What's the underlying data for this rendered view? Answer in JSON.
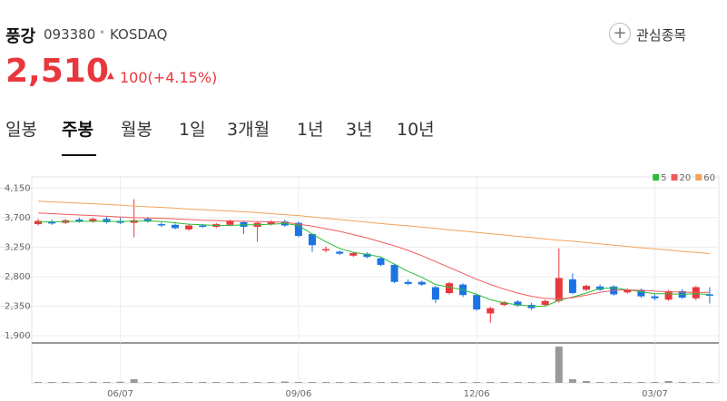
{
  "header": {
    "name": "풍강",
    "code": "093380",
    "separator": "•",
    "market": "KOSDAQ",
    "watch": "관심종목",
    "price": "2,510",
    "arrow": "▲",
    "change": "100(+4.15%)"
  },
  "tabs": [
    "일봉",
    "주봉",
    "월봉",
    "1일",
    "3개월",
    "1년",
    "3년",
    "10년"
  ],
  "selected_tab": 1,
  "chart_data": {
    "type": "candlestick",
    "categories": [
      null,
      null,
      null,
      null,
      null,
      null,
      "06/07",
      null,
      null,
      null,
      null,
      null,
      null,
      null,
      null,
      null,
      null,
      null,
      null,
      "09/06",
      null,
      null,
      null,
      null,
      null,
      null,
      null,
      null,
      null,
      null,
      null,
      null,
      "12/06",
      null,
      null,
      null,
      null,
      null,
      null,
      null,
      null,
      null,
      null,
      null,
      null,
      "03/07",
      null,
      null,
      null,
      null
    ],
    "open": [
      3600,
      3640,
      3620,
      3670,
      3640,
      3680,
      3650,
      3620,
      3680,
      3600,
      3590,
      3520,
      3580,
      3560,
      3590,
      3630,
      3560,
      3600,
      3640,
      3620,
      3450,
      3200,
      3180,
      3120,
      3150,
      3080,
      2980,
      2720,
      2720,
      2640,
      2550,
      2680,
      2520,
      2240,
      2370,
      2420,
      2370,
      2370,
      2430,
      2760,
      2600,
      2650,
      2650,
      2560,
      2600,
      2500,
      2450,
      2580,
      2470,
      2530
    ],
    "high": [
      3680,
      3670,
      3680,
      3700,
      3700,
      3710,
      3700,
      3980,
      3710,
      3630,
      3610,
      3600,
      3600,
      3620,
      3670,
      3650,
      3640,
      3660,
      3670,
      3640,
      3460,
      3260,
      3200,
      3180,
      3170,
      3100,
      3000,
      2760,
      2740,
      2660,
      2720,
      2700,
      2540,
      2340,
      2430,
      2440,
      2400,
      2450,
      3230,
      2850,
      2680,
      2680,
      2670,
      2620,
      2620,
      2530,
      2600,
      2610,
      2660,
      2640
    ],
    "low": [
      3580,
      3590,
      3600,
      3620,
      3620,
      3610,
      3600,
      3400,
      3620,
      3560,
      3520,
      3500,
      3540,
      3540,
      3570,
      3450,
      3330,
      3580,
      3560,
      3400,
      3180,
      3170,
      3130,
      3100,
      3080,
      2960,
      2700,
      2670,
      2660,
      2400,
      2530,
      2490,
      2280,
      2100,
      2350,
      2340,
      2290,
      2350,
      2400,
      2530,
      2580,
      2580,
      2510,
      2540,
      2480,
      2440,
      2430,
      2460,
      2440,
      2390
    ],
    "close": [
      3650,
      3610,
      3660,
      3640,
      3680,
      3630,
      3620,
      3660,
      3640,
      3580,
      3540,
      3580,
      3560,
      3600,
      3650,
      3560,
      3620,
      3640,
      3580,
      3420,
      3280,
      3220,
      3150,
      3160,
      3100,
      2980,
      2720,
      2690,
      2680,
      2450,
      2700,
      2520,
      2300,
      2320,
      2410,
      2360,
      2320,
      2430,
      2780,
      2550,
      2660,
      2600,
      2530,
      2600,
      2500,
      2470,
      2580,
      2480,
      2640,
      2510
    ],
    "volume": [
      1,
      1,
      1,
      1,
      1.2,
      1,
      1.3,
      4,
      1,
      1,
      1,
      1,
      1,
      1,
      1,
      1,
      1,
      1,
      1.5,
      1,
      1,
      1,
      1,
      1,
      1,
      1,
      1,
      1,
      1,
      1,
      1,
      1,
      1,
      1,
      1,
      1,
      1,
      1,
      40,
      4,
      2,
      1,
      1,
      1,
      1,
      1,
      2,
      1,
      1,
      1
    ],
    "vlim": [
      0,
      42
    ],
    "ylim": [
      1790,
      4320
    ],
    "yticks": [
      {
        "value": 4150,
        "label": "4,150"
      },
      {
        "value": 3700,
        "label": "3,700"
      },
      {
        "value": 3250,
        "label": "3,250"
      },
      {
        "value": 2800,
        "label": "2,800"
      },
      {
        "value": 2350,
        "label": "2,350"
      },
      {
        "value": 1900,
        "label": "1,900"
      }
    ],
    "up_color": "#e8383d",
    "down_color": "#1b74e4",
    "grid": true,
    "legend": "top-right",
    "series": [
      {
        "name": "5",
        "color": "#2dbb3a",
        "values": [
          3630,
          3635,
          3640,
          3640,
          3645,
          3645,
          3640,
          3645,
          3650,
          3640,
          3620,
          3600,
          3590,
          3580,
          3580,
          3590,
          3590,
          3600,
          3610,
          3580,
          3450,
          3330,
          3230,
          3170,
          3140,
          3100,
          2990,
          2880,
          2790,
          2680,
          2640,
          2600,
          2530,
          2450,
          2400,
          2370,
          2350,
          2350,
          2440,
          2490,
          2550,
          2620,
          2630,
          2600,
          2570,
          2540,
          2540,
          2530,
          2540,
          2530
        ]
      },
      {
        "name": "20",
        "color": "#ef5a5f",
        "values": [
          3770,
          3760,
          3750,
          3740,
          3730,
          3720,
          3710,
          3700,
          3695,
          3690,
          3680,
          3670,
          3660,
          3655,
          3650,
          3645,
          3640,
          3635,
          3630,
          3600,
          3570,
          3530,
          3490,
          3440,
          3390,
          3330,
          3270,
          3200,
          3120,
          3030,
          2940,
          2850,
          2760,
          2680,
          2610,
          2550,
          2500,
          2470,
          2460,
          2480,
          2520,
          2560,
          2590,
          2600,
          2590,
          2580,
          2570,
          2565,
          2560,
          2560
        ]
      },
      {
        "name": "60",
        "color": "#f3a25a",
        "values": [
          3950,
          3940,
          3930,
          3920,
          3910,
          3900,
          3890,
          3875,
          3865,
          3855,
          3845,
          3830,
          3820,
          3810,
          3800,
          3790,
          3775,
          3760,
          3745,
          3730,
          3710,
          3690,
          3670,
          3650,
          3630,
          3610,
          3590,
          3575,
          3555,
          3535,
          3515,
          3495,
          3475,
          3455,
          3435,
          3415,
          3395,
          3375,
          3355,
          3340,
          3320,
          3300,
          3280,
          3260,
          3240,
          3225,
          3205,
          3185,
          3170,
          3150
        ]
      }
    ]
  }
}
